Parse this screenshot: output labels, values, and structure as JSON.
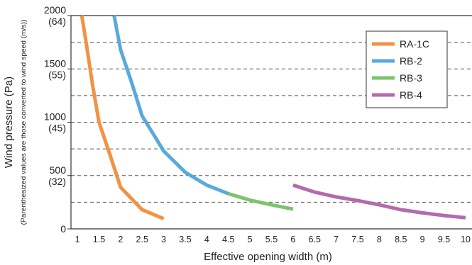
{
  "chart_data": {
    "type": "line",
    "xlabel": "Effective opening width (m)",
    "ylabel": "Wind pressure (Pa)",
    "ylabel_note": "(Parenthesized values are those converted to wind speed (m/s))",
    "xlim": [
      0.85,
      10.15
    ],
    "ylim": [
      0,
      2000
    ],
    "x_ticks": [
      "1",
      "1.5",
      "2",
      "2.5",
      "3",
      "3.5",
      "4",
      "4.5",
      "5",
      "5.5",
      "6",
      "6.5",
      "7",
      "7.5",
      "8",
      "8.5",
      "9",
      "9.5",
      "10"
    ],
    "y_ticks": [
      {
        "value": 0,
        "label": "0",
        "sub": ""
      },
      {
        "value": 500,
        "label": "500",
        "sub": "(32)"
      },
      {
        "value": 1000,
        "label": "1000",
        "sub": "(45)"
      },
      {
        "value": 1500,
        "label": "1500",
        "sub": "(55)"
      },
      {
        "value": 2000,
        "label": "2000",
        "sub": "(64)"
      }
    ],
    "grid": "horizontal dashed",
    "gridlines": [
      250,
      500,
      750,
      1000,
      1250,
      1500,
      1750
    ],
    "legend_position": "top-right",
    "series": [
      {
        "name": "RA-1C",
        "color": "#f39244",
        "points": [
          [
            1.1,
            2000
          ],
          [
            1.2,
            1750
          ],
          [
            1.35,
            1350
          ],
          [
            1.5,
            1000
          ],
          [
            1.75,
            700
          ],
          [
            2.0,
            390
          ],
          [
            2.5,
            180
          ],
          [
            3.0,
            95
          ]
        ]
      },
      {
        "name": "RB-2",
        "color": "#5aa9dd",
        "points": [
          [
            1.85,
            2000
          ],
          [
            2.0,
            1680
          ],
          [
            2.25,
            1380
          ],
          [
            2.5,
            1060
          ],
          [
            3.0,
            730
          ],
          [
            3.5,
            530
          ],
          [
            4.0,
            410
          ],
          [
            4.5,
            330
          ]
        ]
      },
      {
        "name": "RB-3",
        "color": "#7cc46c",
        "points": [
          [
            4.5,
            330
          ],
          [
            5.0,
            270
          ],
          [
            5.5,
            225
          ],
          [
            6.0,
            185
          ]
        ]
      },
      {
        "name": "RB-4",
        "color": "#b46aae",
        "points": [
          [
            6.0,
            410
          ],
          [
            6.5,
            345
          ],
          [
            7.0,
            300
          ],
          [
            7.5,
            265
          ],
          [
            8.0,
            225
          ],
          [
            8.5,
            180
          ],
          [
            9.0,
            150
          ],
          [
            9.5,
            125
          ],
          [
            10.0,
            105
          ]
        ]
      }
    ]
  }
}
